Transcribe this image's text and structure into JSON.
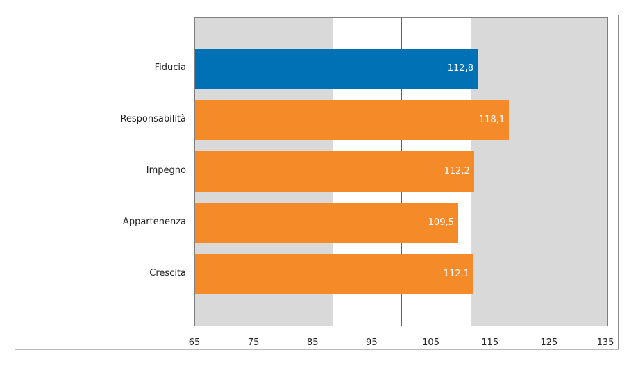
{
  "chart_data": {
    "type": "bar",
    "orientation": "horizontal",
    "title": "",
    "xlabel": "",
    "ylabel": "",
    "categories": [
      "Fiducia",
      "Responsabilità",
      "Impegno",
      "Appartenenza",
      "Crescita"
    ],
    "values": [
      112.8,
      118.1,
      112.2,
      109.5,
      112.1
    ],
    "value_labels": [
      "112,8",
      "118,1",
      "112,2",
      "109,5",
      "112,1"
    ],
    "bar_colors": [
      "#0071b5",
      "#f58a28",
      "#f58a28",
      "#f58a28",
      "#f58a28"
    ],
    "xlim": [
      65,
      135
    ],
    "xticks": [
      65,
      75,
      85,
      95,
      105,
      115,
      125,
      135
    ],
    "xtick_labels": [
      "65",
      "75",
      "85",
      "95",
      "105",
      "115",
      "125",
      "135"
    ],
    "reference_line": {
      "value": 100,
      "color": "#e8262a"
    },
    "background_bands": [
      {
        "from": 65,
        "to": 88.4,
        "color": "#d9d9d9"
      },
      {
        "from": 111.6,
        "to": 135,
        "color": "#d9d9d9"
      }
    ],
    "grid": false,
    "legend": null
  }
}
